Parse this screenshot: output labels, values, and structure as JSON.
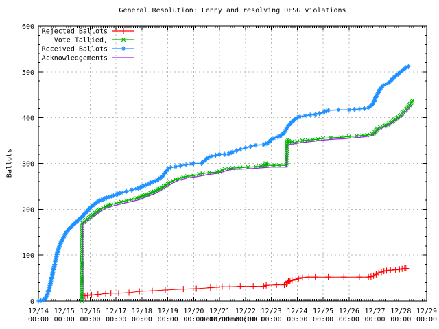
{
  "chart_data": {
    "type": "line",
    "title": "General Resolution: Lenny and resolving DFSG violations",
    "xlabel": "Date/Time (UTC)",
    "ylabel": "Ballots",
    "x_unit": "days since 12/14 00:00 UTC",
    "xlim": [
      0,
      15
    ],
    "ylim": [
      0,
      600
    ],
    "grid": true,
    "legend_position": "top-left",
    "grid_color": "#b8b8b8",
    "axis_color": "#000000",
    "y_ticks": [
      0,
      100,
      200,
      300,
      400,
      500,
      600
    ],
    "x_ticks": [
      {
        "date": "12/14",
        "time": "00:00"
      },
      {
        "date": "12/15",
        "time": "00:00"
      },
      {
        "date": "12/16",
        "time": "00:00"
      },
      {
        "date": "12/17",
        "time": "00:00"
      },
      {
        "date": "12/18",
        "time": "00:00"
      },
      {
        "date": "12/19",
        "time": "00:00"
      },
      {
        "date": "12/20",
        "time": "00:00"
      },
      {
        "date": "12/21",
        "time": "00:00"
      },
      {
        "date": "12/22",
        "time": "00:00"
      },
      {
        "date": "12/23",
        "time": "00:00"
      },
      {
        "date": "12/24",
        "time": "00:00"
      },
      {
        "date": "12/25",
        "time": "00:00"
      },
      {
        "date": "12/26",
        "time": "00:00"
      },
      {
        "date": "12/27",
        "time": "00:00"
      },
      {
        "date": "12/28",
        "time": "00:00"
      },
      {
        "date": "12/29",
        "time": "00:00"
      }
    ],
    "series": [
      {
        "name": "Rejected Ballots",
        "color": "#ff0000",
        "marker": "plus",
        "marker_size": 4.5,
        "line_width": 1,
        "dense_markers": false,
        "points": [
          [
            1.8,
            11
          ],
          [
            1.9,
            12
          ],
          [
            2.05,
            13
          ],
          [
            2.3,
            14
          ],
          [
            2.6,
            16
          ],
          [
            2.8,
            17
          ],
          [
            3.1,
            17
          ],
          [
            3.5,
            18
          ],
          [
            3.9,
            21
          ],
          [
            4.4,
            22
          ],
          [
            4.9,
            24
          ],
          [
            5.6,
            26
          ],
          [
            6.1,
            27
          ],
          [
            6.65,
            29
          ],
          [
            6.9,
            30
          ],
          [
            7.1,
            31
          ],
          [
            7.4,
            31
          ],
          [
            7.8,
            32
          ],
          [
            8.3,
            32
          ],
          [
            8.7,
            32
          ],
          [
            8.8,
            34
          ],
          [
            9.2,
            35
          ],
          [
            9.5,
            35
          ],
          [
            9.58,
            37
          ],
          [
            9.62,
            40
          ],
          [
            9.66,
            43
          ],
          [
            9.72,
            44
          ],
          [
            9.8,
            45
          ],
          [
            9.95,
            47
          ],
          [
            10.05,
            49
          ],
          [
            10.2,
            51
          ],
          [
            10.45,
            52
          ],
          [
            10.7,
            52
          ],
          [
            11.2,
            52
          ],
          [
            11.8,
            52
          ],
          [
            12.4,
            52
          ],
          [
            12.75,
            52
          ],
          [
            12.85,
            53
          ],
          [
            12.95,
            55
          ],
          [
            13.05,
            58
          ],
          [
            13.15,
            61
          ],
          [
            13.25,
            63
          ],
          [
            13.35,
            65
          ],
          [
            13.45,
            66
          ],
          [
            13.6,
            67
          ],
          [
            13.8,
            68
          ],
          [
            13.95,
            69
          ],
          [
            14.05,
            70
          ],
          [
            14.15,
            71
          ],
          [
            14.2,
            71
          ]
        ]
      },
      {
        "name": "Vote Tallied,",
        "color": "#00b400",
        "marker": "cross",
        "marker_size": 3.6,
        "line_width": 1.4,
        "dense_markers": true,
        "points": [
          [
            1.68,
            0
          ],
          [
            1.7,
            170
          ],
          [
            1.8,
            174
          ],
          [
            1.9,
            179
          ],
          [
            2,
            184
          ],
          [
            2.1,
            188
          ],
          [
            2.2,
            192
          ],
          [
            2.3,
            196
          ],
          [
            2.4,
            200
          ],
          [
            2.5,
            203
          ],
          [
            2.6,
            206
          ],
          [
            2.8,
            210
          ],
          [
            3,
            213
          ],
          [
            3.2,
            216
          ],
          [
            3.4,
            219
          ],
          [
            3.6,
            221
          ],
          [
            3.8,
            224
          ],
          [
            4,
            228
          ],
          [
            4.2,
            232
          ],
          [
            4.4,
            237
          ],
          [
            4.6,
            242
          ],
          [
            4.8,
            248
          ],
          [
            5,
            255
          ],
          [
            5.1,
            259
          ],
          [
            5.2,
            262
          ],
          [
            5.3,
            265
          ],
          [
            5.45,
            267
          ],
          [
            5.6,
            270
          ],
          [
            5.75,
            272
          ],
          [
            6,
            273
          ],
          [
            6.2,
            276
          ],
          [
            6.35,
            278
          ],
          [
            6.6,
            280
          ],
          [
            6.9,
            281
          ],
          [
            7,
            282
          ],
          [
            7.1,
            285
          ],
          [
            7.2,
            288
          ],
          [
            7.35,
            289
          ],
          [
            7.5,
            290
          ],
          [
            7.8,
            291
          ],
          [
            8.1,
            292
          ],
          [
            8.4,
            293
          ],
          [
            8.6,
            294
          ],
          [
            8.73,
            295
          ],
          [
            8.78,
            300
          ],
          [
            8.83,
            296
          ],
          [
            9.1,
            296
          ],
          [
            9.3,
            296
          ],
          [
            9.58,
            296
          ],
          [
            9.6,
            340
          ],
          [
            9.63,
            352
          ],
          [
            9.7,
            346
          ],
          [
            9.8,
            348
          ],
          [
            9.9,
            345
          ],
          [
            10,
            348
          ],
          [
            10.2,
            350
          ],
          [
            10.4,
            351
          ],
          [
            10.6,
            352
          ],
          [
            10.8,
            353
          ],
          [
            11,
            355
          ],
          [
            11.3,
            356
          ],
          [
            11.7,
            357
          ],
          [
            12,
            359
          ],
          [
            12.3,
            360
          ],
          [
            12.5,
            361
          ],
          [
            12.7,
            362
          ],
          [
            12.9,
            364
          ],
          [
            13,
            368
          ],
          [
            13.05,
            372
          ],
          [
            13.1,
            376
          ],
          [
            13.2,
            379
          ],
          [
            13.35,
            381
          ],
          [
            13.5,
            385
          ],
          [
            13.6,
            389
          ],
          [
            13.7,
            393
          ],
          [
            13.8,
            397
          ],
          [
            13.9,
            401
          ],
          [
            14,
            406
          ],
          [
            14.1,
            412
          ],
          [
            14.2,
            418
          ],
          [
            14.3,
            425
          ],
          [
            14.4,
            432
          ],
          [
            14.45,
            437
          ]
        ]
      },
      {
        "name": "Received Ballots",
        "color": "#1e90ff",
        "marker": "star",
        "marker_size": 3.6,
        "line_width": 1.5,
        "dense_markers": true,
        "points": [
          [
            0,
            0
          ],
          [
            0.1,
            1
          ],
          [
            0.2,
            2
          ],
          [
            0.28,
            6
          ],
          [
            0.33,
            12
          ],
          [
            0.38,
            20
          ],
          [
            0.43,
            30
          ],
          [
            0.48,
            42
          ],
          [
            0.53,
            55
          ],
          [
            0.58,
            68
          ],
          [
            0.63,
            80
          ],
          [
            0.68,
            93
          ],
          [
            0.73,
            105
          ],
          [
            0.78,
            114
          ],
          [
            0.83,
            122
          ],
          [
            0.88,
            129
          ],
          [
            0.93,
            135
          ],
          [
            1,
            141
          ],
          [
            1.05,
            147
          ],
          [
            1.1,
            152
          ],
          [
            1.2,
            158
          ],
          [
            1.3,
            164
          ],
          [
            1.4,
            169
          ],
          [
            1.5,
            174
          ],
          [
            1.6,
            179
          ],
          [
            1.7,
            185
          ],
          [
            1.8,
            191
          ],
          [
            1.9,
            196
          ],
          [
            1.95,
            200
          ],
          [
            2,
            203
          ],
          [
            2.1,
            208
          ],
          [
            2.2,
            213
          ],
          [
            2.3,
            217
          ],
          [
            2.5,
            222
          ],
          [
            2.7,
            226
          ],
          [
            2.9,
            230
          ],
          [
            3,
            232
          ],
          [
            3.2,
            236
          ],
          [
            3.4,
            239
          ],
          [
            3.6,
            242
          ],
          [
            3.8,
            245
          ],
          [
            4,
            249
          ],
          [
            4.2,
            254
          ],
          [
            4.4,
            259
          ],
          [
            4.6,
            264
          ],
          [
            4.8,
            272
          ],
          [
            4.9,
            280
          ],
          [
            5,
            288
          ],
          [
            5.1,
            291
          ],
          [
            5.3,
            293
          ],
          [
            5.5,
            295
          ],
          [
            5.7,
            297
          ],
          [
            5.9,
            299
          ],
          [
            6,
            300
          ],
          [
            6.3,
            300
          ],
          [
            6.4,
            305
          ],
          [
            6.5,
            310
          ],
          [
            6.6,
            314
          ],
          [
            6.7,
            316
          ],
          [
            6.85,
            318
          ],
          [
            7,
            320
          ],
          [
            7.2,
            320
          ],
          [
            7.35,
            321
          ],
          [
            7.5,
            325
          ],
          [
            7.65,
            328
          ],
          [
            7.8,
            331
          ],
          [
            8,
            334
          ],
          [
            8.2,
            337
          ],
          [
            8.4,
            340
          ],
          [
            8.7,
            341
          ],
          [
            8.9,
            346
          ],
          [
            9,
            352
          ],
          [
            9.1,
            355
          ],
          [
            9.25,
            358
          ],
          [
            9.4,
            362
          ],
          [
            9.5,
            368
          ],
          [
            9.6,
            377
          ],
          [
            9.7,
            385
          ],
          [
            9.8,
            391
          ],
          [
            9.9,
            396
          ],
          [
            10,
            400
          ],
          [
            10.1,
            402
          ],
          [
            10.3,
            404
          ],
          [
            10.5,
            406
          ],
          [
            10.7,
            407
          ],
          [
            10.85,
            409
          ],
          [
            11,
            412
          ],
          [
            11.2,
            416
          ],
          [
            11.6,
            417
          ],
          [
            12,
            417
          ],
          [
            12.2,
            418
          ],
          [
            12.4,
            419
          ],
          [
            12.6,
            420
          ],
          [
            12.75,
            422
          ],
          [
            12.85,
            426
          ],
          [
            12.95,
            432
          ],
          [
            13,
            440
          ],
          [
            13.05,
            447
          ],
          [
            13.1,
            452
          ],
          [
            13.2,
            462
          ],
          [
            13.3,
            469
          ],
          [
            13.4,
            472
          ],
          [
            13.5,
            475
          ],
          [
            13.6,
            480
          ],
          [
            13.7,
            486
          ],
          [
            13.8,
            491
          ],
          [
            13.9,
            495
          ],
          [
            14,
            500
          ],
          [
            14.1,
            505
          ],
          [
            14.2,
            509
          ],
          [
            14.3,
            512
          ]
        ]
      },
      {
        "name": "Acknowledgements",
        "color": "#a020f0",
        "marker": "none",
        "marker_size": 0,
        "line_width": 1.2,
        "dense_markers": false,
        "points": [
          [
            1.69,
            0
          ],
          [
            1.71,
            167
          ],
          [
            1.8,
            171
          ],
          [
            1.9,
            176
          ],
          [
            2,
            180
          ],
          [
            2.2,
            188
          ],
          [
            2.4,
            196
          ],
          [
            2.6,
            202
          ],
          [
            2.8,
            206
          ],
          [
            3,
            209
          ],
          [
            3.3,
            213
          ],
          [
            3.6,
            217
          ],
          [
            3.9,
            221
          ],
          [
            4.2,
            228
          ],
          [
            4.5,
            234
          ],
          [
            4.8,
            244
          ],
          [
            5,
            251
          ],
          [
            5.2,
            258
          ],
          [
            5.4,
            263
          ],
          [
            5.6,
            266
          ],
          [
            5.8,
            269
          ],
          [
            6,
            270
          ],
          [
            6.3,
            273
          ],
          [
            6.6,
            276
          ],
          [
            6.9,
            278
          ],
          [
            7.1,
            281
          ],
          [
            7.3,
            285
          ],
          [
            7.5,
            287
          ],
          [
            8,
            288
          ],
          [
            8.5,
            290
          ],
          [
            9,
            292
          ],
          [
            9.58,
            292
          ],
          [
            9.61,
            337
          ],
          [
            9.7,
            342
          ],
          [
            9.9,
            343
          ],
          [
            10.1,
            345
          ],
          [
            10.4,
            347
          ],
          [
            10.7,
            349
          ],
          [
            11,
            351
          ],
          [
            11.4,
            353
          ],
          [
            11.8,
            354
          ],
          [
            12.2,
            356
          ],
          [
            12.6,
            358
          ],
          [
            12.9,
            361
          ],
          [
            13,
            365
          ],
          [
            13.1,
            373
          ],
          [
            13.25,
            377
          ],
          [
            13.4,
            380
          ],
          [
            13.55,
            384
          ],
          [
            13.7,
            390
          ],
          [
            13.85,
            396
          ],
          [
            14,
            402
          ],
          [
            14.15,
            410
          ],
          [
            14.3,
            420
          ],
          [
            14.4,
            428
          ]
        ]
      }
    ]
  }
}
